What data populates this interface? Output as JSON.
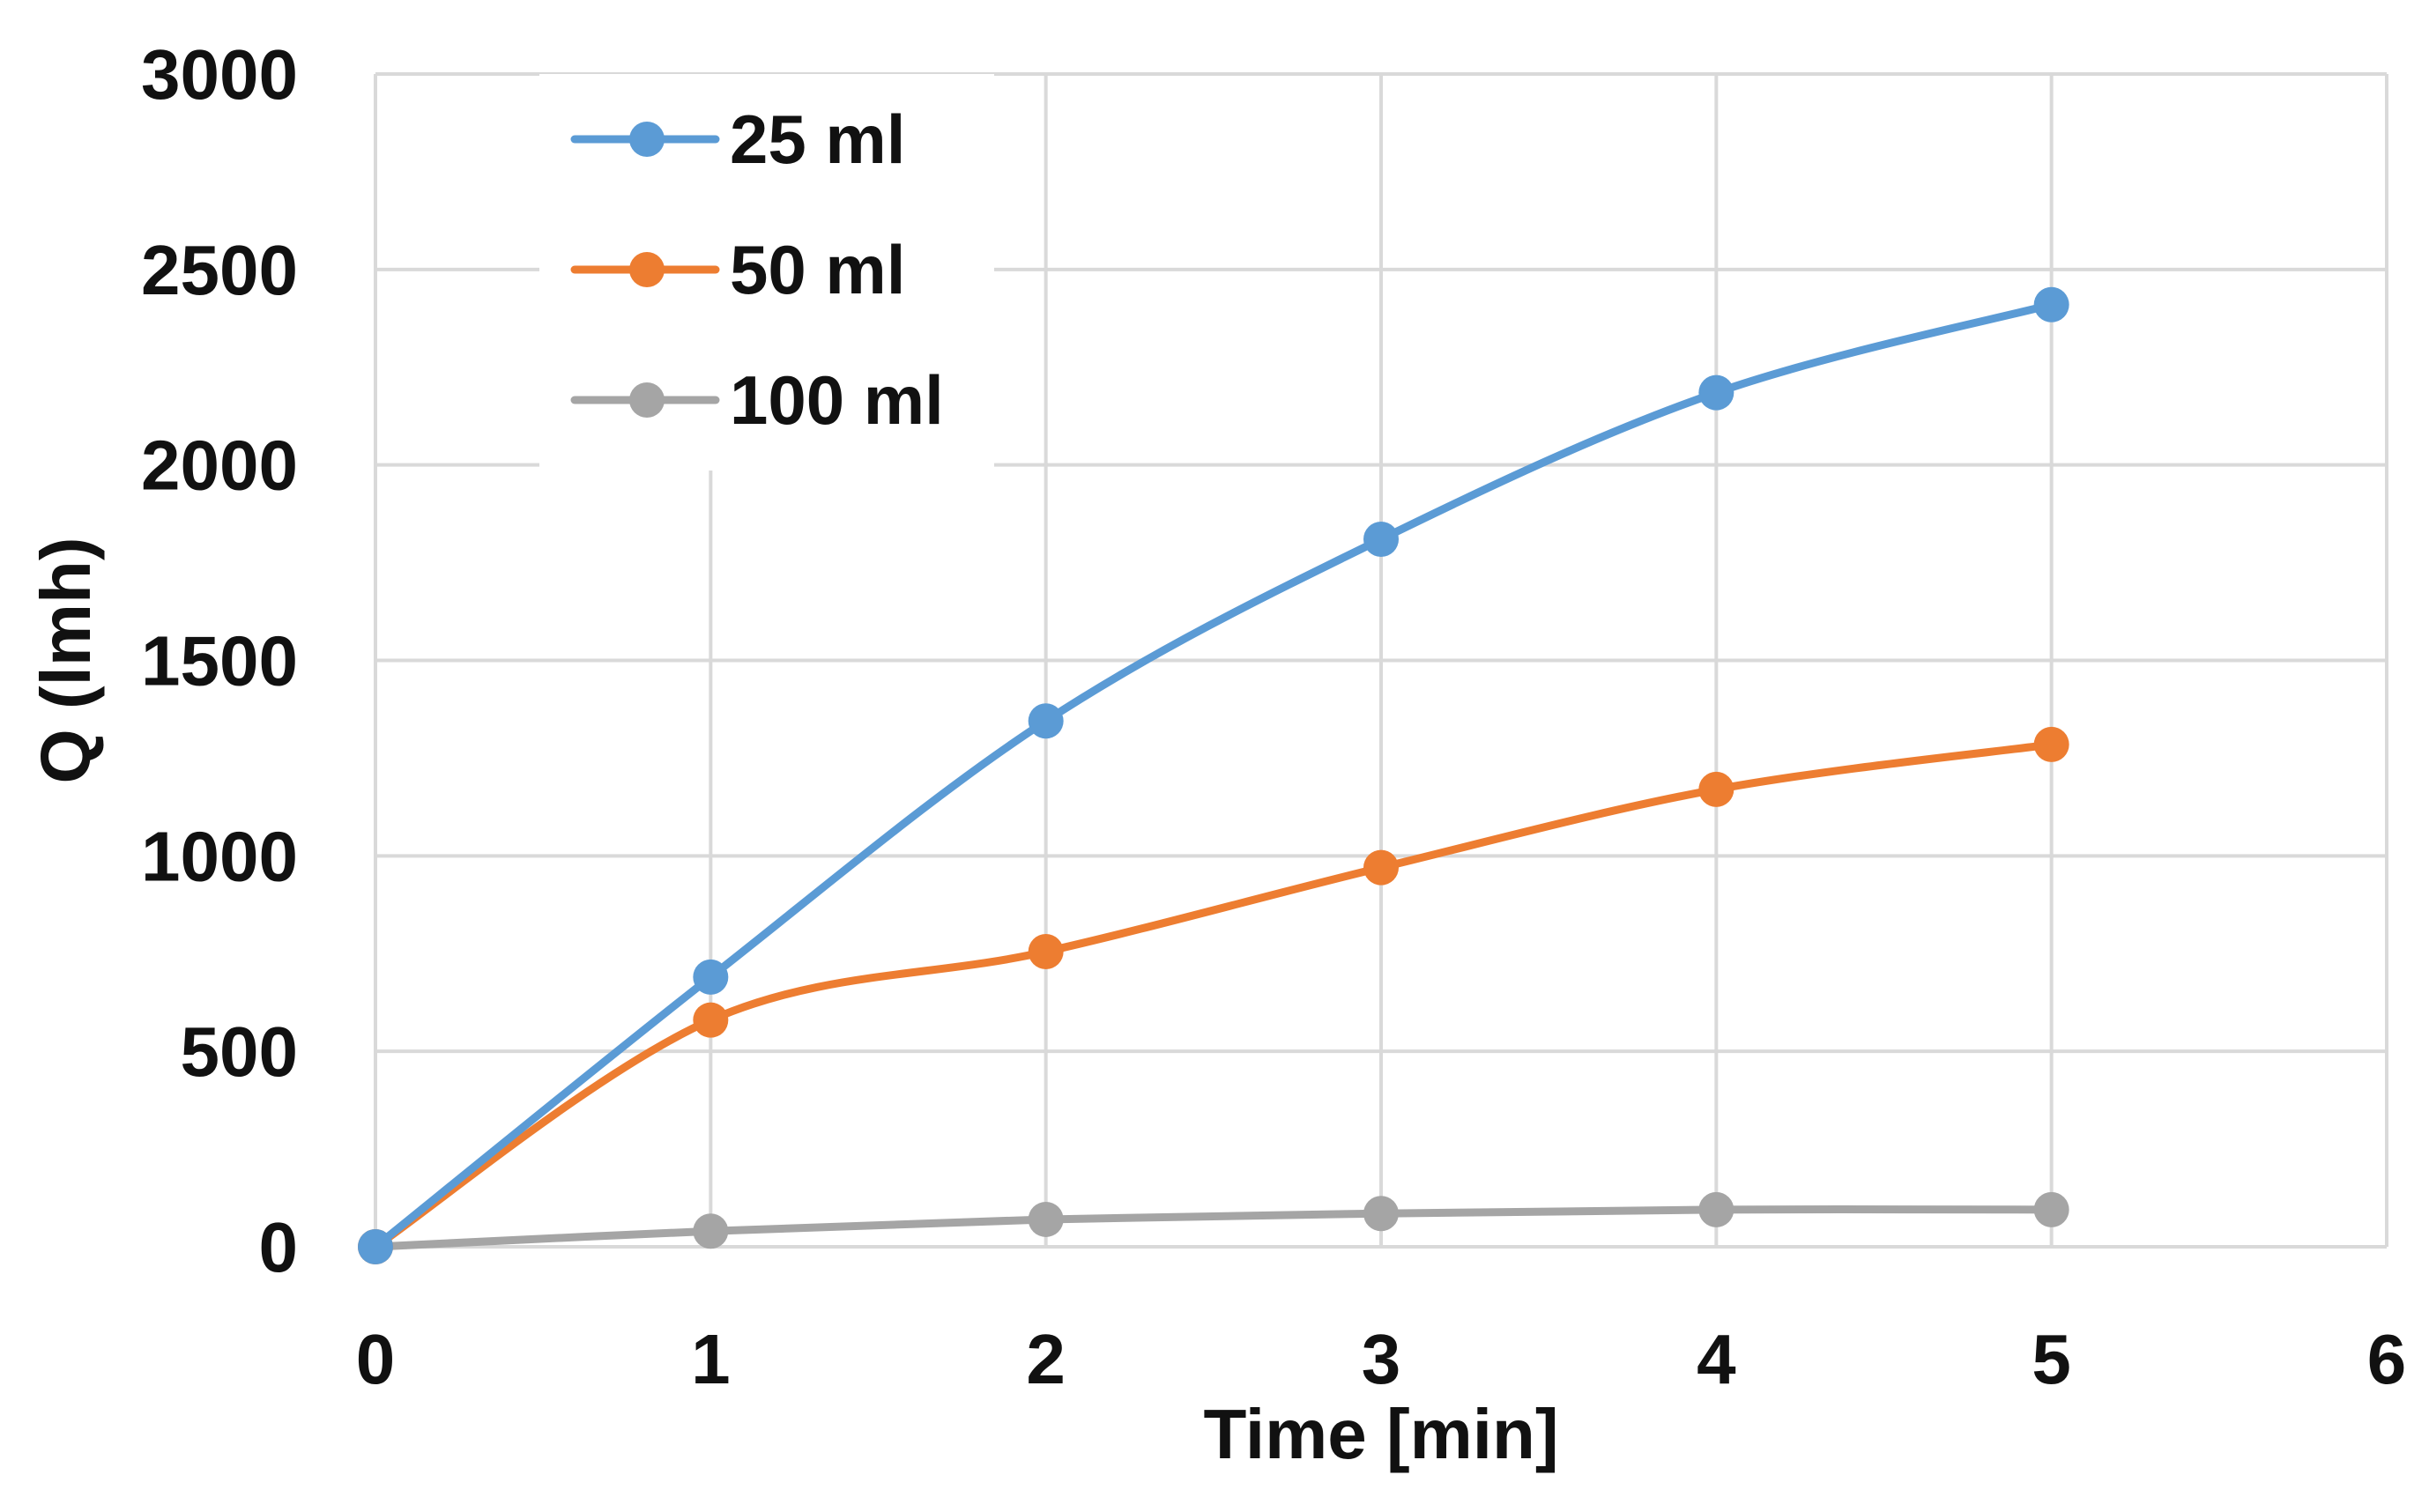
{
  "chart_data": {
    "type": "line",
    "title": "",
    "xlabel": "Time [min]",
    "ylabel": "Q (lmh)",
    "xlim": [
      0,
      6
    ],
    "ylim": [
      0,
      3000
    ],
    "x_ticks": [
      0,
      1,
      2,
      3,
      4,
      5,
      6
    ],
    "y_ticks": [
      0,
      500,
      1000,
      1500,
      2000,
      2500,
      3000
    ],
    "grid": true,
    "smooth": true,
    "legend_position": "top-left",
    "x": [
      0,
      1,
      2,
      3,
      4,
      5
    ],
    "series": [
      {
        "name": "25 ml",
        "color": "#5b9bd5",
        "values": [
          0,
          690,
          1345,
          1810,
          2185,
          2410
        ]
      },
      {
        "name": "50 ml",
        "color": "#ed7d31",
        "values": [
          0,
          580,
          755,
          970,
          1170,
          1285
        ]
      },
      {
        "name": "100 ml",
        "color": "#a5a5a5",
        "values": [
          0,
          40,
          70,
          85,
          95,
          95
        ]
      }
    ]
  }
}
